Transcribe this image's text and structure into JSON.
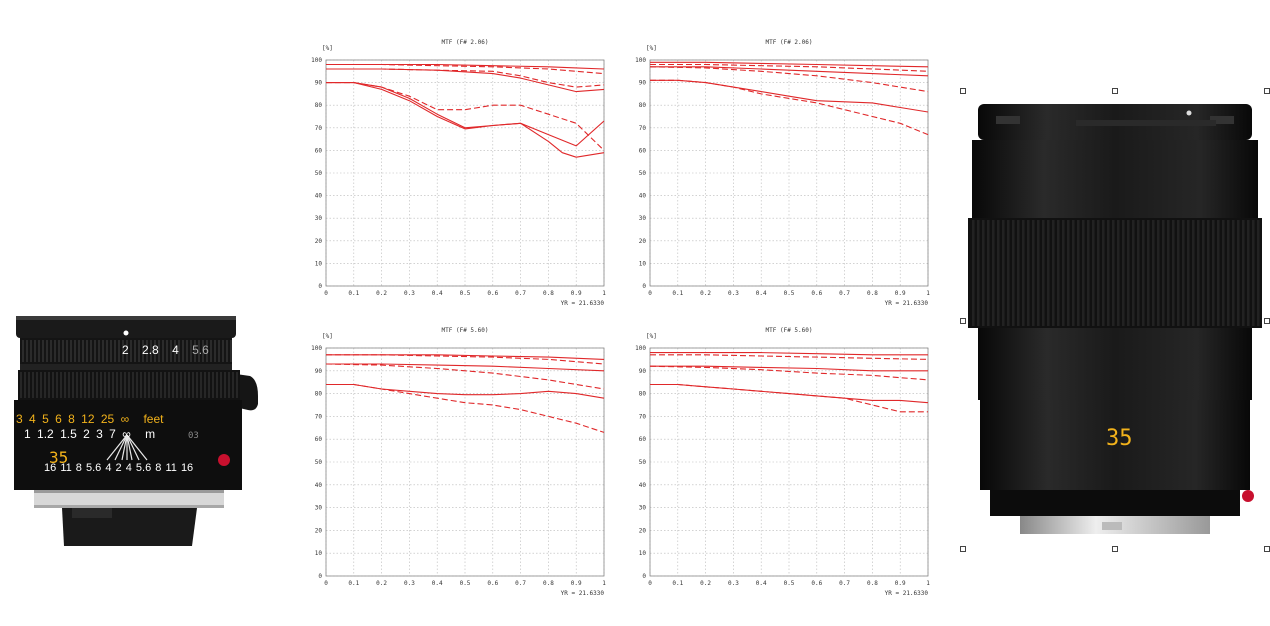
{
  "lens_left": {
    "distance_scale_feet": [
      "3",
      "4",
      "5",
      "6",
      "8",
      "12",
      "25",
      "∞",
      "feet"
    ],
    "distance_scale_m": [
      "1",
      "1.2",
      "1.5",
      "2",
      "3",
      "7",
      "∞",
      "m"
    ],
    "aperture_ring": [
      "2",
      "2.8",
      "4",
      "5.6"
    ],
    "dof_scale": [
      "16",
      "11",
      "8",
      "5.6",
      "4",
      "2",
      "4",
      "5.6",
      "8",
      "11",
      "16"
    ],
    "focal_length": "35",
    "serial_digits": "03"
  },
  "lens_right": {
    "focal_length": "35"
  },
  "chart_data": [
    {
      "type": "line",
      "title": "MTF (F# 2.06)",
      "ylabel": "[%]",
      "field_note": "YR =   21.6330",
      "x_ticks": [
        "0",
        "0.1",
        "0.2",
        "0.3",
        "0.4",
        "0.5",
        "0.6",
        "0.7",
        "0.8",
        "0.9",
        "1"
      ],
      "y_ticks": [
        "0",
        "10",
        "20",
        "30",
        "40",
        "50",
        "60",
        "70",
        "80",
        "90",
        "100"
      ],
      "xlim": [
        0,
        1
      ],
      "ylim": [
        0,
        100
      ],
      "grid": true,
      "series": [
        {
          "style": "solid",
          "x": [
            0,
            0.2,
            0.4,
            0.6,
            0.8,
            0.9,
            1
          ],
          "y": [
            98,
            98,
            98,
            97.5,
            97,
            96.5,
            96
          ]
        },
        {
          "style": "dashed",
          "x": [
            0,
            0.2,
            0.4,
            0.6,
            0.8,
            0.9,
            1
          ],
          "y": [
            98,
            98,
            97.5,
            97,
            96,
            95,
            94
          ]
        },
        {
          "style": "solid",
          "x": [
            0,
            0.2,
            0.4,
            0.6,
            0.7,
            0.8,
            0.9,
            1
          ],
          "y": [
            96,
            96,
            95.5,
            94,
            92,
            89,
            86,
            87
          ]
        },
        {
          "style": "dashed",
          "x": [
            0,
            0.2,
            0.4,
            0.6,
            0.7,
            0.8,
            0.9,
            1
          ],
          "y": [
            96,
            96,
            95.5,
            95,
            93,
            90,
            88,
            89
          ]
        },
        {
          "style": "dashed",
          "x": [
            0,
            0.1,
            0.2,
            0.3,
            0.4,
            0.5,
            0.6,
            0.7,
            0.8,
            0.9,
            1
          ],
          "y": [
            90,
            90,
            88,
            84,
            78,
            78,
            80,
            80,
            76,
            72,
            60
          ]
        },
        {
          "style": "solid",
          "x": [
            0,
            0.1,
            0.2,
            0.3,
            0.4,
            0.5,
            0.6,
            0.7,
            0.8,
            0.9,
            1
          ],
          "y": [
            90,
            90,
            87,
            82,
            75,
            69.5,
            71,
            72,
            67,
            62,
            73
          ]
        },
        {
          "style": "solid",
          "x": [
            0,
            0.1,
            0.2,
            0.3,
            0.4,
            0.5,
            0.6,
            0.7,
            0.8,
            0.85,
            0.9,
            1
          ],
          "y": [
            90,
            90,
            88,
            83,
            76,
            70,
            71,
            72,
            64,
            59,
            57,
            59
          ]
        }
      ]
    },
    {
      "type": "line",
      "title": "MTF (F# 2.06)",
      "ylabel": "[%]",
      "field_note": "YR =   21.6330",
      "x_ticks": [
        "0",
        "0.1",
        "0.2",
        "0.3",
        "0.4",
        "0.5",
        "0.6",
        "0.7",
        "0.8",
        "0.9",
        "1"
      ],
      "y_ticks": [
        "0",
        "10",
        "20",
        "30",
        "40",
        "50",
        "60",
        "70",
        "80",
        "90",
        "100"
      ],
      "xlim": [
        0,
        1
      ],
      "ylim": [
        0,
        100
      ],
      "grid": true,
      "series": [
        {
          "style": "solid",
          "x": [
            0,
            0.2,
            0.4,
            0.6,
            0.8,
            1
          ],
          "y": [
            99,
            99,
            98.5,
            98,
            97.5,
            97
          ]
        },
        {
          "style": "dashed",
          "x": [
            0,
            0.2,
            0.4,
            0.6,
            0.8,
            1
          ],
          "y": [
            98,
            98,
            97.5,
            97,
            96,
            95
          ]
        },
        {
          "style": "solid",
          "x": [
            0,
            0.2,
            0.4,
            0.6,
            0.8,
            1
          ],
          "y": [
            97,
            97,
            96,
            95,
            94,
            93
          ]
        },
        {
          "style": "dashed",
          "x": [
            0,
            0.2,
            0.4,
            0.6,
            0.8,
            1
          ],
          "y": [
            97,
            96.5,
            95,
            93,
            90,
            86
          ]
        },
        {
          "style": "solid",
          "x": [
            0,
            0.1,
            0.2,
            0.3,
            0.4,
            0.5,
            0.6,
            0.7,
            0.8,
            0.9,
            1
          ],
          "y": [
            91,
            91,
            90,
            88,
            86,
            84,
            82,
            81.5,
            81,
            79,
            77
          ]
        },
        {
          "style": "dashed",
          "x": [
            0,
            0.1,
            0.2,
            0.3,
            0.4,
            0.5,
            0.6,
            0.7,
            0.8,
            0.9,
            1
          ],
          "y": [
            91,
            91,
            90,
            88,
            85,
            83,
            81,
            78,
            75,
            72,
            67
          ]
        }
      ]
    },
    {
      "type": "line",
      "title": "MTF (F# 5.60)",
      "ylabel": "[%]",
      "field_note": "YR =   21.6330",
      "x_ticks": [
        "0",
        "0.1",
        "0.2",
        "0.3",
        "0.4",
        "0.5",
        "0.6",
        "0.7",
        "0.8",
        "0.9",
        "1"
      ],
      "y_ticks": [
        "0",
        "10",
        "20",
        "30",
        "40",
        "50",
        "60",
        "70",
        "80",
        "90",
        "100"
      ],
      "xlim": [
        0,
        1
      ],
      "ylim": [
        0,
        100
      ],
      "grid": true,
      "series": [
        {
          "style": "solid",
          "x": [
            0,
            0.2,
            0.4,
            0.6,
            0.8,
            1
          ],
          "y": [
            97,
            97,
            97,
            96.5,
            96,
            95
          ]
        },
        {
          "style": "dashed",
          "x": [
            0,
            0.2,
            0.4,
            0.6,
            0.8,
            1
          ],
          "y": [
            97,
            97,
            96.5,
            96,
            95,
            93
          ]
        },
        {
          "style": "solid",
          "x": [
            0,
            0.2,
            0.4,
            0.6,
            0.8,
            1
          ],
          "y": [
            93,
            93,
            92.5,
            92,
            91,
            90
          ]
        },
        {
          "style": "dashed",
          "x": [
            0,
            0.2,
            0.4,
            0.6,
            0.8,
            1
          ],
          "y": [
            93,
            92.5,
            91,
            89,
            86,
            82
          ]
        },
        {
          "style": "solid",
          "x": [
            0,
            0.1,
            0.2,
            0.3,
            0.4,
            0.5,
            0.6,
            0.7,
            0.8,
            0.9,
            1
          ],
          "y": [
            84,
            84,
            82,
            81,
            80,
            79.5,
            79.5,
            80,
            81,
            80,
            78
          ]
        },
        {
          "style": "dashed",
          "x": [
            0,
            0.1,
            0.2,
            0.3,
            0.4,
            0.5,
            0.6,
            0.7,
            0.8,
            0.9,
            1
          ],
          "y": [
            84,
            84,
            82,
            80,
            78,
            76,
            75,
            73,
            70,
            67,
            63
          ]
        }
      ]
    },
    {
      "type": "line",
      "title": "MTF (F# 5.60)",
      "ylabel": "[%]",
      "field_note": "YR =   21.6330",
      "x_ticks": [
        "0",
        "0.1",
        "0.2",
        "0.3",
        "0.4",
        "0.5",
        "0.6",
        "0.7",
        "0.8",
        "0.9",
        "1"
      ],
      "y_ticks": [
        "0",
        "10",
        "20",
        "30",
        "40",
        "50",
        "60",
        "70",
        "80",
        "90",
        "100"
      ],
      "xlim": [
        0,
        1
      ],
      "ylim": [
        0,
        100
      ],
      "grid": true,
      "series": [
        {
          "style": "solid",
          "x": [
            0,
            0.2,
            0.4,
            0.6,
            0.8,
            1
          ],
          "y": [
            98,
            98,
            98,
            97.5,
            97,
            97
          ]
        },
        {
          "style": "dashed",
          "x": [
            0,
            0.2,
            0.4,
            0.6,
            0.8,
            1
          ],
          "y": [
            97,
            97,
            96.5,
            96,
            95.5,
            95
          ]
        },
        {
          "style": "solid",
          "x": [
            0,
            0.2,
            0.4,
            0.6,
            0.8,
            1
          ],
          "y": [
            92,
            92,
            91.5,
            91,
            90,
            90
          ]
        },
        {
          "style": "dashed",
          "x": [
            0,
            0.2,
            0.4,
            0.6,
            0.8,
            1
          ],
          "y": [
            92,
            91.5,
            90.5,
            89,
            88,
            86
          ]
        },
        {
          "style": "solid",
          "x": [
            0,
            0.1,
            0.2,
            0.3,
            0.4,
            0.5,
            0.6,
            0.7,
            0.8,
            0.9,
            1
          ],
          "y": [
            84,
            84,
            83,
            82,
            81,
            80,
            79,
            78,
            77,
            77,
            76
          ]
        },
        {
          "style": "dashed",
          "x": [
            0,
            0.1,
            0.2,
            0.3,
            0.4,
            0.5,
            0.6,
            0.7,
            0.8,
            0.9,
            1
          ],
          "y": [
            84,
            84,
            83,
            82,
            81,
            80,
            79,
            78,
            75,
            72,
            72
          ]
        }
      ]
    }
  ]
}
